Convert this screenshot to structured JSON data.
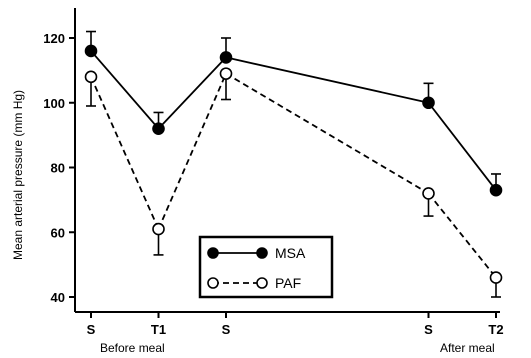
{
  "chart_data": {
    "type": "line",
    "title": "",
    "ylabel": "Mean arterial pressure (mm Hg)",
    "xlabel": "",
    "ylim": [
      40,
      130
    ],
    "yticks": [
      40,
      60,
      80,
      100,
      120
    ],
    "categories": [
      "S",
      "T1",
      "S",
      "S",
      "T2"
    ],
    "x": [
      0,
      1,
      2,
      5,
      6
    ],
    "group_labels": {
      "before": "Before meal",
      "after": "After meal"
    },
    "legend_position": "center",
    "grid": false,
    "series": [
      {
        "name": "MSA",
        "style": "solid",
        "marker": "filled-circle",
        "values": [
          116,
          92,
          114,
          100,
          73
        ],
        "error": [
          6,
          5,
          6,
          6,
          5
        ]
      },
      {
        "name": "PAF",
        "style": "dashed",
        "marker": "open-circle",
        "values": [
          108,
          61,
          109,
          72,
          46
        ],
        "error": [
          9,
          8,
          8,
          7,
          6
        ]
      }
    ]
  }
}
